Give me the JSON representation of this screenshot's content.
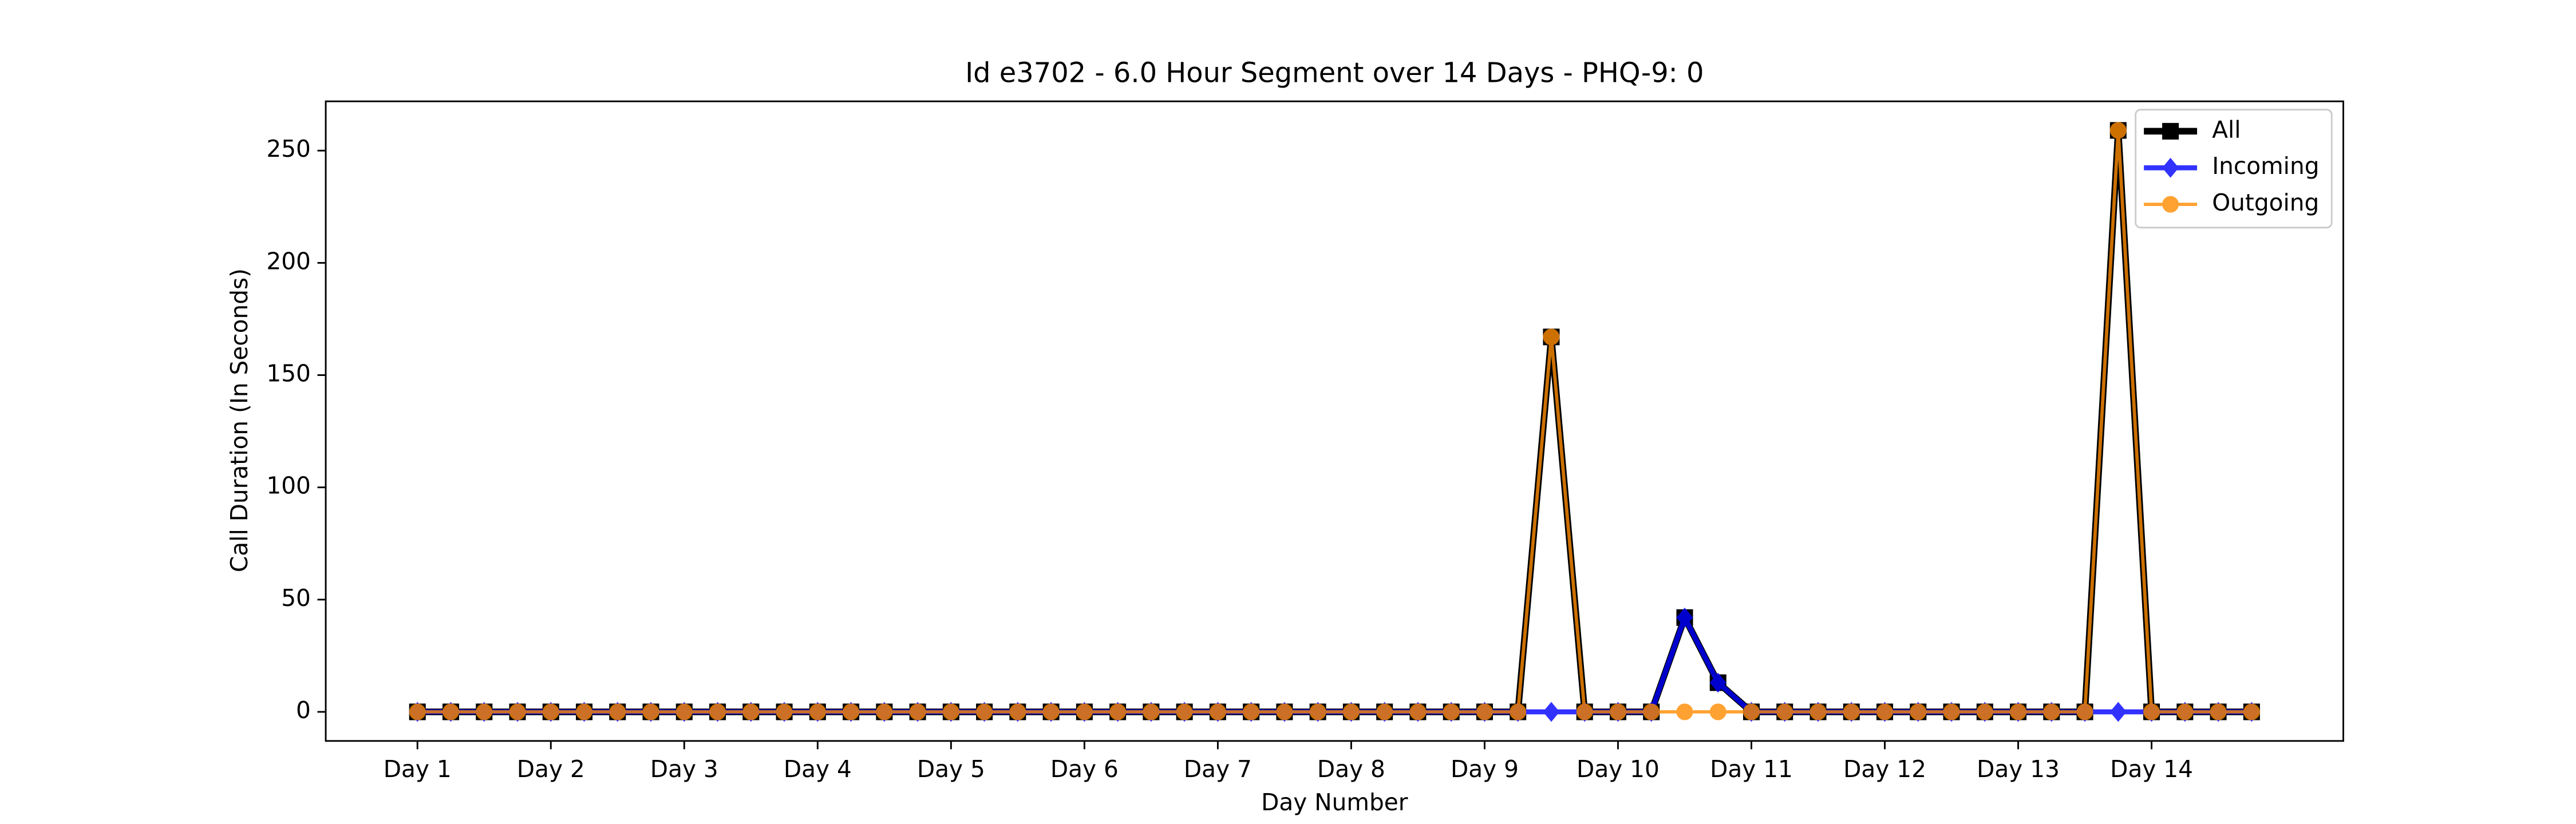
{
  "chart_data": {
    "type": "line",
    "title": "Id e3702 - 6.0 Hour Segment over 14 Days - PHQ-9: 0",
    "xlabel": "Day Number",
    "ylabel": "Call Duration (In Seconds)",
    "categories": [
      "Day 1",
      null,
      null,
      null,
      "Day 2",
      null,
      null,
      null,
      "Day 3",
      null,
      null,
      null,
      "Day 4",
      null,
      null,
      null,
      "Day 5",
      null,
      null,
      null,
      "Day 6",
      null,
      null,
      null,
      "Day 7",
      null,
      null,
      null,
      "Day 8",
      null,
      null,
      null,
      "Day 9",
      null,
      null,
      null,
      "Day 10",
      null,
      null,
      null,
      "Day 11",
      null,
      null,
      null,
      "Day 12",
      null,
      null,
      null,
      "Day 13",
      null,
      null,
      null,
      "Day 14",
      null,
      null,
      null
    ],
    "series": [
      {
        "name": "All",
        "color": "#000000",
        "alpha": 1,
        "marker": "square",
        "values": [
          0,
          0,
          0,
          0,
          0,
          0,
          0,
          0,
          0,
          0,
          0,
          0,
          0,
          0,
          0,
          0,
          0,
          0,
          0,
          0,
          0,
          0,
          0,
          0,
          0,
          0,
          0,
          0,
          0,
          0,
          0,
          0,
          0,
          0,
          167,
          0,
          0,
          0,
          42,
          13,
          0,
          0,
          0,
          0,
          0,
          0,
          0,
          0,
          0,
          0,
          0,
          259,
          0,
          0,
          0,
          0
        ]
      },
      {
        "name": "Incoming",
        "color": "#0000ff",
        "alpha": 0.8,
        "marker": "diamond",
        "values": [
          0,
          0,
          0,
          0,
          0,
          0,
          0,
          0,
          0,
          0,
          0,
          0,
          0,
          0,
          0,
          0,
          0,
          0,
          0,
          0,
          0,
          0,
          0,
          0,
          0,
          0,
          0,
          0,
          0,
          0,
          0,
          0,
          0,
          0,
          0,
          0,
          0,
          0,
          42,
          13,
          0,
          0,
          0,
          0,
          0,
          0,
          0,
          0,
          0,
          0,
          0,
          0,
          0,
          0,
          0,
          0
        ]
      },
      {
        "name": "Outgoing",
        "color": "#ff8c00",
        "alpha": 0.8,
        "marker": "circle",
        "values": [
          0,
          0,
          0,
          0,
          0,
          0,
          0,
          0,
          0,
          0,
          0,
          0,
          0,
          0,
          0,
          0,
          0,
          0,
          0,
          0,
          0,
          0,
          0,
          0,
          0,
          0,
          0,
          0,
          0,
          0,
          0,
          0,
          0,
          0,
          167,
          0,
          0,
          0,
          0,
          0,
          0,
          0,
          0,
          0,
          0,
          0,
          0,
          0,
          0,
          0,
          0,
          259,
          0,
          0,
          0,
          0
        ]
      }
    ],
    "ylim": [
      -12.95,
      271.95
    ],
    "yticks": [
      0,
      50,
      100,
      150,
      200,
      250
    ],
    "legend": "upper right"
  }
}
